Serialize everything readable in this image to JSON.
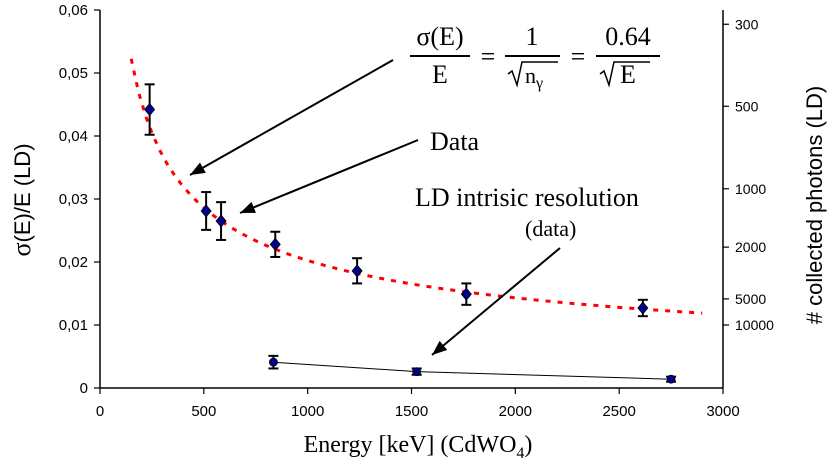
{
  "chart_data": {
    "type": "scatter",
    "xlabel_main": "Energy  [keV]  (CdWO",
    "xlabel_sub": "4",
    "xlabel_close": ")",
    "ylabel_sigma": "σ",
    "ylabel_rest": "(E)/E  (LD)",
    "y2label": "# collected photons (LD)",
    "xlim": [
      0,
      3000
    ],
    "ylim": [
      0,
      0.06
    ],
    "x_ticks": [
      "0",
      "500",
      "1000",
      "1500",
      "2000",
      "2500",
      "3000"
    ],
    "y_ticks": [
      "0",
      "0,01",
      "0,02",
      "0,03",
      "0,04",
      "0,05",
      "0,06"
    ],
    "y2_ticks": [
      {
        "label": "300",
        "photons": 300
      },
      {
        "label": "500",
        "photons": 500
      },
      {
        "label": "1000",
        "photons": 1000
      },
      {
        "label": "2000",
        "photons": 2000
      },
      {
        "label": "5000",
        "photons": 5000
      },
      {
        "label": "10000",
        "photons": 10000
      }
    ],
    "series": [
      {
        "name": "Data",
        "color": "#00008b",
        "points": [
          {
            "x": 239,
            "y": 0.0442,
            "err": 0.004
          },
          {
            "x": 511,
            "y": 0.0281,
            "err": 0.003
          },
          {
            "x": 583,
            "y": 0.0265,
            "err": 0.003
          },
          {
            "x": 844,
            "y": 0.0228,
            "err": 0.002
          },
          {
            "x": 1238,
            "y": 0.0186,
            "err": 0.002
          },
          {
            "x": 1764,
            "y": 0.0149,
            "err": 0.0017
          },
          {
            "x": 2614,
            "y": 0.0127,
            "err": 0.0013
          }
        ]
      },
      {
        "name": "LD intrisic resolution (data)",
        "color": "#00008b",
        "points": [
          {
            "x": 835,
            "y": 0.0041,
            "err": 0.001
          },
          {
            "x": 1525,
            "y": 0.0026,
            "err": 0.0005
          },
          {
            "x": 2750,
            "y": 0.0014,
            "err": 0.0004
          }
        ]
      }
    ],
    "fit": {
      "coefficient": 0.64,
      "x_start": 150,
      "x_end": 2900,
      "color": "#ff0000"
    },
    "formula": {
      "lhs_num": "σ(E)",
      "lhs_den": "E",
      "mid_num": "1",
      "mid_den_base": "n",
      "mid_den_sub": "γ",
      "rhs_num": "0.64",
      "rhs_den": "E",
      "equals": "="
    },
    "annotations": {
      "data": "Data",
      "ld_line1": "LD intrisic resolution",
      "ld_line2": "(data)"
    },
    "arrow_color": "#000000"
  }
}
